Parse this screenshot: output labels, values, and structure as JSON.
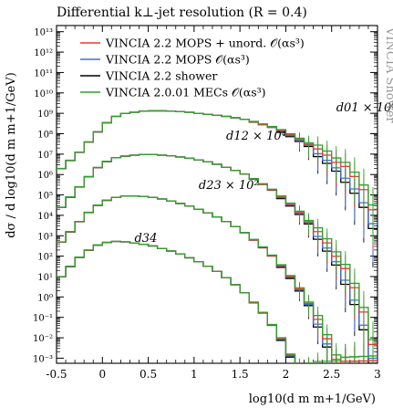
{
  "chart_data": {
    "type": "line",
    "title": "Differential k⊥-jet resolution (R = 0.4)",
    "xlabel": "log10(d m m+1/GeV)",
    "ylabel": "dσ / d log10(d m m+1/GeV)",
    "side_label": "VINCIA Shower",
    "xlim": [
      -0.5,
      3.0
    ],
    "ylim_log10": [
      -3.25,
      13.3
    ],
    "log_y": true,
    "x_ticks": [
      -0.5,
      0,
      0.5,
      1,
      1.5,
      2,
      2.5,
      3
    ],
    "x_tick_labels": [
      "-0.5",
      "0",
      "0.5",
      "1",
      "1.5",
      "2",
      "2.5",
      "3"
    ],
    "y_tick_exponents": [
      -3,
      -2,
      -1,
      0,
      1,
      2,
      3,
      4,
      5,
      6,
      7,
      8,
      9,
      10,
      11,
      12,
      13
    ],
    "y_tick_labels": [
      "10⁻³",
      "10⁻²",
      "10⁻¹",
      "10⁰",
      "10¹",
      "10²",
      "10³",
      "10⁴",
      "10⁵",
      "10⁶",
      "10⁷",
      "10⁸",
      "10⁹",
      "10¹⁰",
      "10¹¹",
      "10¹²",
      "10¹³"
    ],
    "legend_position": "top-left",
    "legend": [
      {
        "label": "VINCIA 2.2 MOPS + unord. 𝒪(αs³)",
        "color": "#e8392e"
      },
      {
        "label": "VINCIA 2.2 MOPS 𝒪(αs³)",
        "color": "#3f6fd8"
      },
      {
        "label": "VINCIA 2.2 shower",
        "color": "#000000"
      },
      {
        "label": "VINCIA 2.0.01 MECs 𝒪(αs³)",
        "color": "#2ea12e"
      }
    ],
    "annotations": [
      {
        "text": "d01 × 10⁶",
        "x": 2.55,
        "y_log10": 9.1
      },
      {
        "text": "d12 × 10⁴",
        "x": 1.35,
        "y_log10": 7.7
      },
      {
        "text": "d23 × 10²",
        "x": 1.05,
        "y_log10": 5.3
      },
      {
        "text": "d34",
        "x": 0.35,
        "y_log10": 2.7
      }
    ],
    "series": [
      {
        "name": "d01 × 10⁶",
        "color": "#2ea12e",
        "x_log10d": [
          -0.45,
          -0.35,
          -0.25,
          -0.15,
          -0.05,
          0.05,
          0.15,
          0.25,
          0.35,
          0.45,
          0.55,
          0.65,
          0.75,
          0.85,
          0.95,
          1.05,
          1.15,
          1.25,
          1.35,
          1.45,
          1.55,
          1.65,
          1.75,
          1.85,
          1.95,
          2.05,
          2.15,
          2.25,
          2.35,
          2.45,
          2.55,
          2.65,
          2.75,
          2.85,
          2.95
        ],
        "y_log10": [
          6.3,
          6.7,
          7.1,
          7.6,
          8.1,
          8.55,
          8.85,
          9.0,
          9.05,
          9.1,
          9.12,
          9.12,
          9.1,
          9.08,
          9.05,
          9.0,
          8.95,
          8.9,
          8.85,
          8.78,
          8.7,
          8.6,
          8.48,
          8.35,
          8.2,
          8.0,
          7.78,
          7.55,
          7.3,
          7.0,
          6.65,
          6.25,
          5.75,
          5.1,
          4.1
        ]
      },
      {
        "name": "d12 × 10⁴",
        "color": "#2ea12e",
        "x_log10d": [
          -0.45,
          -0.35,
          -0.25,
          -0.15,
          -0.05,
          0.05,
          0.15,
          0.25,
          0.35,
          0.45,
          0.55,
          0.65,
          0.75,
          0.85,
          0.95,
          1.05,
          1.15,
          1.25,
          1.35,
          1.45,
          1.55,
          1.65,
          1.75,
          1.85,
          1.95,
          2.05,
          2.15,
          2.25,
          2.35,
          2.45,
          2.55,
          2.65,
          2.75,
          2.85,
          2.95
        ],
        "y_log10": [
          4.4,
          4.9,
          5.4,
          5.9,
          6.35,
          6.65,
          6.82,
          6.9,
          6.95,
          6.98,
          6.98,
          6.95,
          6.92,
          6.86,
          6.8,
          6.72,
          6.62,
          6.5,
          6.35,
          6.2,
          6.02,
          5.8,
          5.55,
          5.28,
          4.95,
          4.6,
          4.2,
          3.75,
          3.25,
          2.7,
          2.05,
          1.25,
          0.3,
          -0.9,
          -2.5
        ]
      },
      {
        "name": "d23 × 10²",
        "color": "#2ea12e",
        "x_log10d": [
          -0.45,
          -0.35,
          -0.25,
          -0.15,
          -0.05,
          0.05,
          0.15,
          0.25,
          0.35,
          0.45,
          0.55,
          0.65,
          0.75,
          0.85,
          0.95,
          1.05,
          1.15,
          1.25,
          1.35,
          1.45,
          1.55,
          1.65,
          1.75,
          1.85,
          1.95,
          2.05,
          2.15,
          2.25,
          2.35,
          2.45,
          2.55,
          2.65,
          2.75,
          2.85,
          2.95
        ],
        "y_log10": [
          2.7,
          3.2,
          3.7,
          4.15,
          4.5,
          4.75,
          4.88,
          4.95,
          4.95,
          4.92,
          4.88,
          4.8,
          4.7,
          4.58,
          4.45,
          4.3,
          4.12,
          3.92,
          3.7,
          3.45,
          3.15,
          2.82,
          2.45,
          2.05,
          1.58,
          1.05,
          0.45,
          -0.25,
          -1.05,
          -2.0,
          -3.0,
          -3.3,
          -3.3,
          -3.3,
          -3.3
        ]
      },
      {
        "name": "d34",
        "color": "#2ea12e",
        "x_log10d": [
          -0.45,
          -0.35,
          -0.25,
          -0.15,
          -0.05,
          0.05,
          0.15,
          0.25,
          0.35,
          0.45,
          0.55,
          0.65,
          0.75,
          0.85,
          0.95,
          1.05,
          1.15,
          1.25,
          1.35,
          1.45,
          1.55,
          1.65,
          1.75,
          1.85,
          1.95,
          2.05,
          2.15,
          2.25,
          2.35,
          2.45,
          2.55,
          2.65,
          2.75,
          2.85,
          2.95
        ],
        "y_log10": [
          1.0,
          1.5,
          1.95,
          2.3,
          2.55,
          2.68,
          2.72,
          2.7,
          2.65,
          2.58,
          2.5,
          2.38,
          2.25,
          2.1,
          1.92,
          1.72,
          1.5,
          1.25,
          0.95,
          0.6,
          0.2,
          -0.25,
          -0.75,
          -1.35,
          -2.0,
          -2.8,
          -3.3,
          -3.3,
          -3.3,
          -3.3,
          -3.3,
          -3.3,
          -3.3,
          -3.3,
          -3.3
        ]
      }
    ]
  }
}
